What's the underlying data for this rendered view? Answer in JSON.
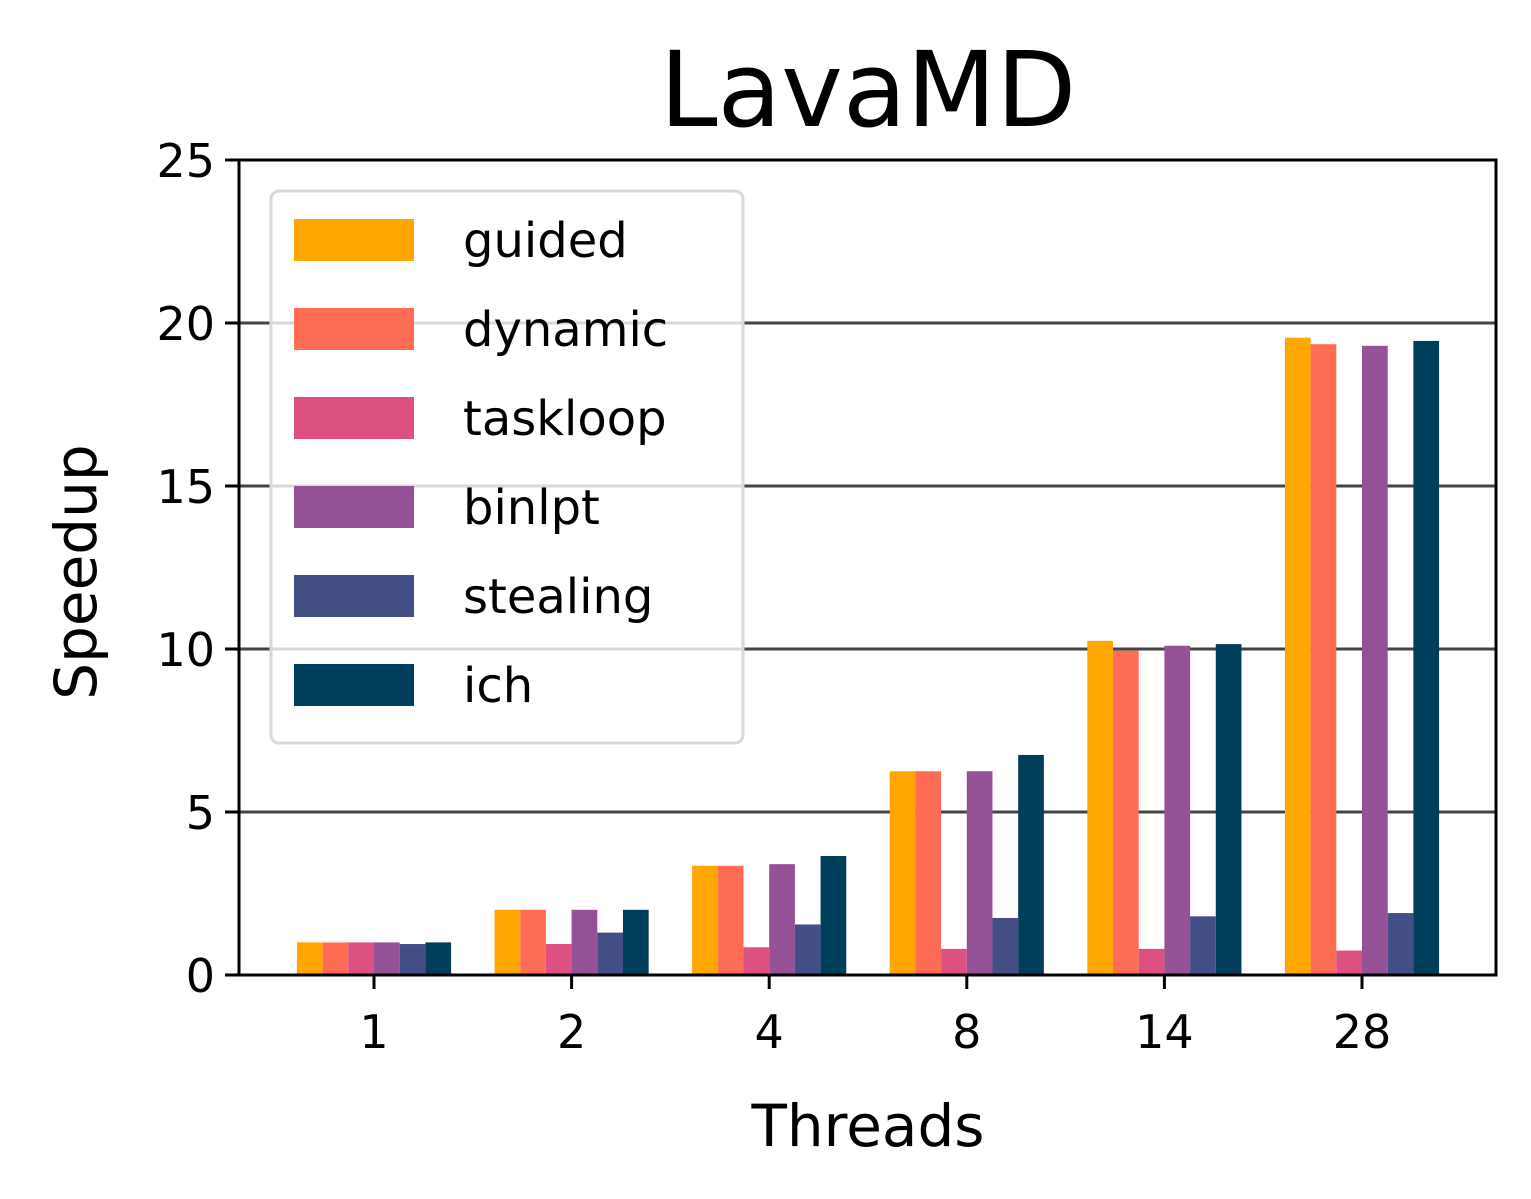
{
  "chart_data": {
    "type": "bar",
    "title": "LavaMD",
    "xlabel": "Threads",
    "ylabel": "Speedup",
    "ylim": [
      0,
      25
    ],
    "yticks": [
      "0",
      "5",
      "10",
      "15",
      "20",
      "25"
    ],
    "categories": [
      "1",
      "2",
      "4",
      "8",
      "14",
      "28"
    ],
    "grid": "horizontal",
    "legend_position": "top-left",
    "series": [
      {
        "name": "guided",
        "color": "#FFA600",
        "values": [
          1.0,
          2.0,
          3.35,
          6.25,
          10.25,
          19.55
        ]
      },
      {
        "name": "dynamic",
        "color": "#FF6E54",
        "values": [
          1.0,
          2.0,
          3.35,
          6.25,
          9.95,
          19.35
        ]
      },
      {
        "name": "taskloop",
        "color": "#DD5182",
        "values": [
          1.0,
          0.95,
          0.85,
          0.8,
          0.8,
          0.75
        ]
      },
      {
        "name": "binlpt",
        "color": "#955196",
        "values": [
          1.0,
          2.0,
          3.4,
          6.25,
          10.1,
          19.3
        ]
      },
      {
        "name": "stealing",
        "color": "#444E86",
        "values": [
          0.95,
          1.3,
          1.55,
          1.75,
          1.8,
          1.9
        ]
      },
      {
        "name": "ich",
        "color": "#003F5C",
        "values": [
          1.0,
          2.0,
          3.65,
          6.75,
          10.15,
          19.45
        ]
      }
    ]
  }
}
